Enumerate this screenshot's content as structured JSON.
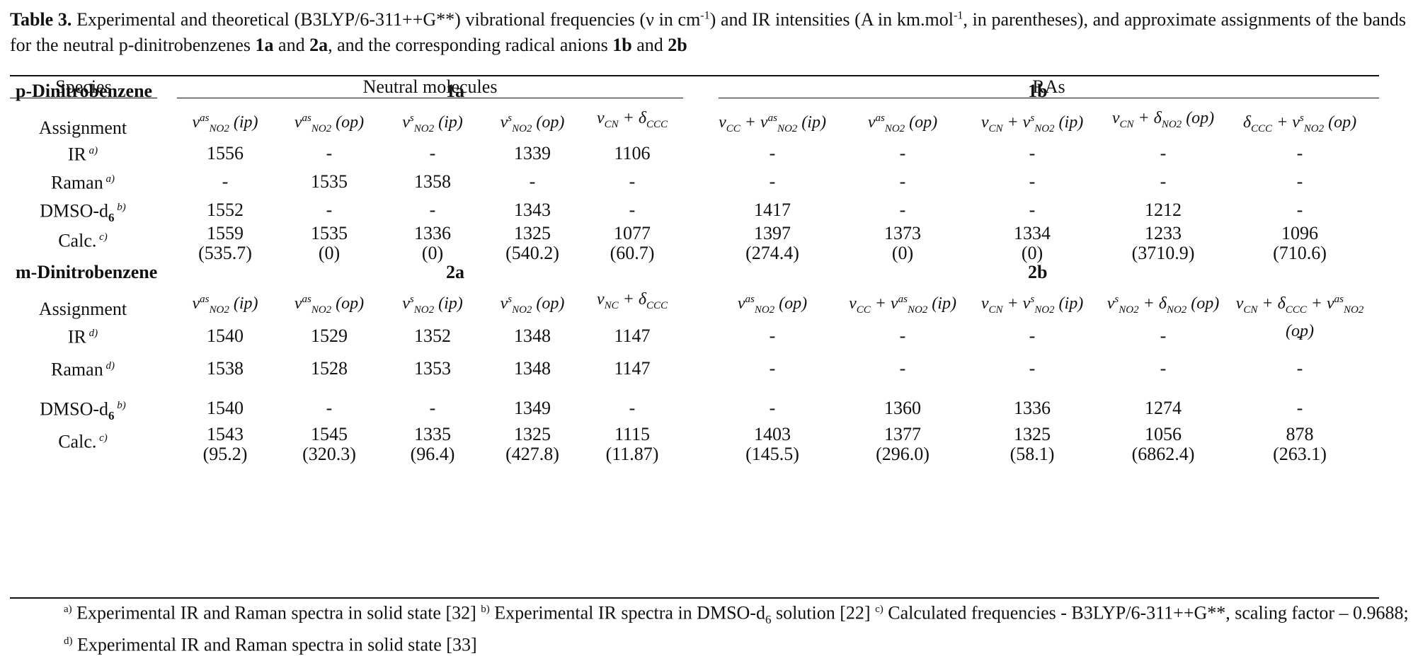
{
  "caption": {
    "label": "Table 3.",
    "text_1": " Experimental and theoretical (B3LYP/6-311++G**) vibrational frequencies (ν in cm",
    "text_2": ") and IR intensities (A in km.mol",
    "text_3": ", in parentheses), and approximate assignments of the bands for the neutral p-dinitrobenzenes ",
    "b1": "1a",
    "t_and1": " and ",
    "b2": "2a",
    "t_mid": ", and the corresponding radical anions ",
    "b3": "1b",
    "t_and2": " and ",
    "b4": "2b",
    "sup_neg1": "-1"
  },
  "headers": {
    "species": "Species",
    "neutral": "Neutral molecules",
    "ras": "RAs"
  },
  "sections": [
    {
      "name": "p-Dinitrobenzene",
      "neutral_id": "1a",
      "ra_id": "1b",
      "assignments": [
        [
          "v",
          "as",
          "NO2",
          "(ip)"
        ],
        [
          "v",
          "as",
          "NO2",
          "(op)"
        ],
        [
          "v",
          "s",
          "NO2",
          "(ip)"
        ],
        [
          "v",
          "s",
          "NO2",
          "(op)"
        ],
        [
          "v",
          "",
          "CN",
          "+ δ",
          "CCC"
        ],
        [
          "v",
          "",
          "CC",
          "+ v",
          "as",
          "NO2",
          "(ip)"
        ],
        [
          "v",
          "as",
          "NO2",
          "(op)"
        ],
        [
          "v",
          "",
          "CN",
          "+ v",
          "s",
          "NO2",
          "(ip)"
        ],
        [
          "v",
          "",
          "CN",
          "+ δ",
          "NO2",
          "(op)"
        ],
        [
          "δ",
          "",
          "CCC",
          "+ v",
          "s",
          "NO2",
          "(op)"
        ]
      ],
      "rows": [
        {
          "label": "IR",
          "note": "a)",
          "values": [
            "1556",
            "-",
            "-",
            "1339",
            "1106",
            "-",
            "-",
            "-",
            "-",
            "-"
          ]
        },
        {
          "label": "Raman",
          "note": "a)",
          "values": [
            "-",
            "1535",
            "1358",
            "-",
            "-",
            "-",
            "-",
            "-",
            "-",
            "-"
          ]
        },
        {
          "label": "DMSO-d",
          "label_sub": "6",
          "note": "b)",
          "values": [
            "1552",
            "-",
            "-",
            "1343",
            "-",
            "1417",
            "-",
            "-",
            "1212",
            "-"
          ]
        },
        {
          "label": "Calc.",
          "note": "c)",
          "values": [
            "1559",
            "1535",
            "1336",
            "1325",
            "1077",
            "1397",
            "1373",
            "1334",
            "1233",
            "1096"
          ],
          "intensities": [
            "(535.7)",
            "(0)",
            "(0)",
            "(540.2)",
            "(60.7)",
            "(274.4)",
            "(0)",
            "(0)",
            "(3710.9)",
            "(710.6)"
          ]
        }
      ]
    },
    {
      "name": "m-Dinitrobenzene",
      "neutral_id": "2a",
      "ra_id": "2b",
      "rows": [
        {
          "label": "IR",
          "note": "d)",
          "values": [
            "1540",
            "1529",
            "1352",
            "1348",
            "1147",
            "-",
            "-",
            "-",
            "-",
            "-"
          ]
        },
        {
          "label": "Raman",
          "note": "d)",
          "values": [
            "1538",
            "1528",
            "1353",
            "1348",
            "1147",
            "-",
            "-",
            "-",
            "-",
            "-"
          ]
        },
        {
          "label": "DMSO-d",
          "label_sub": "6",
          "note": "b)",
          "values": [
            "1540",
            "-",
            "-",
            "1349",
            "-",
            "-",
            "1360",
            "1336",
            "1274",
            "-"
          ]
        },
        {
          "label": "Calc.",
          "note": "c)",
          "values": [
            "1543",
            "1545",
            "1335",
            "1325",
            "1115",
            "1403",
            "1377",
            "1325",
            "1056",
            "878"
          ],
          "intensities": [
            "(95.2)",
            "(320.3)",
            "(96.4)",
            "(427.8)",
            "(11.87)",
            "(145.5)",
            "(296.0)",
            "(58.1)",
            "(6862.4)",
            "(263.1)"
          ]
        }
      ]
    }
  ],
  "assignment_label": "Assignment",
  "footnotes": {
    "a_mark": "a)",
    "a_text": " Experimental IR and Raman spectra in solid state [32] ",
    "b_mark": "b)",
    "b_text_1": " Experimental IR spectra in DMSO-d",
    "b_sub": "6",
    "b_text_2": " solution [22] ",
    "c_mark": "c)",
    "c_text": " Calculated frequencies - B3LYP/6-311++G**, scaling factor – 0.9688; ",
    "d_mark": "d)",
    "d_text": " Experimental IR and Raman spectra in solid state [33]"
  }
}
